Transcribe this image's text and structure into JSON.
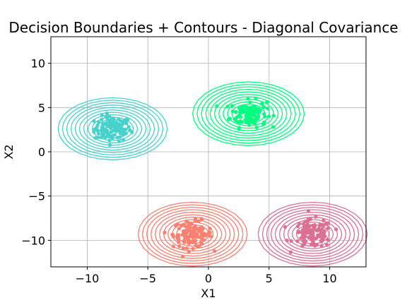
{
  "chart_data": {
    "type": "scatter",
    "title": "Decision Boundaries + Contours - Diagonal Covariance",
    "xlabel": "X1",
    "ylabel": "X2",
    "xlim": [
      -13,
      13
    ],
    "ylim": [
      -13,
      13
    ],
    "x_ticks": [
      -10,
      -5,
      0,
      5,
      10
    ],
    "y_ticks": [
      -10,
      -5,
      0,
      5,
      10
    ],
    "x_tick_labels": [
      "−10",
      "−5",
      "0",
      "5",
      "10"
    ],
    "y_tick_labels": [
      "−10",
      "−5",
      "0",
      "5",
      "10"
    ],
    "grid": true,
    "clusters": [
      {
        "color": "#48d1cc",
        "center": [
          -7.9,
          2.6
        ],
        "spread": [
          0.75,
          0.7
        ],
        "contour_radius": [
          4.5,
          3.5
        ],
        "n_points": 120
      },
      {
        "color": "#00ff7f",
        "center": [
          3.3,
          4.3
        ],
        "spread": [
          0.75,
          0.75
        ],
        "contour_radius": [
          4.6,
          3.6
        ],
        "n_points": 120
      },
      {
        "color": "#fa8072",
        "center": [
          -1.3,
          -9.3
        ],
        "spread": [
          0.8,
          0.75
        ],
        "contour_radius": [
          4.5,
          3.6
        ],
        "n_points": 120
      },
      {
        "color": "#db7093",
        "center": [
          8.6,
          -9.3
        ],
        "spread": [
          0.8,
          0.8
        ],
        "contour_radius": [
          4.5,
          3.6
        ],
        "n_points": 120
      }
    ]
  }
}
